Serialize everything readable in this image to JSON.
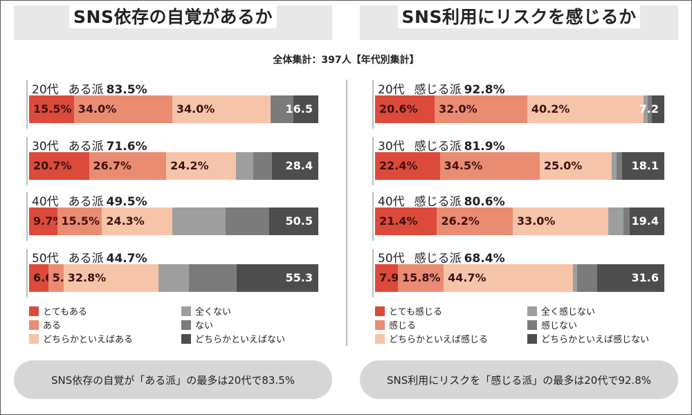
{
  "subtitle": "全体集計：397人【年代別集計】",
  "colors": {
    "very": "#dc4a3c",
    "some": "#ea8c72",
    "rather": "#f6c4a8",
    "not_at_all": "#9e9e9e",
    "not": "#7b7b7b",
    "rather_not": "#4d4d4d"
  },
  "panels": [
    {
      "title": "SNS依存の自覚があるか",
      "legend": [
        "とてもある",
        "全くない",
        "ある",
        "ない",
        "どちらかといえばある",
        "どちらかといえばない"
      ],
      "footer": "SNS依存の自覚が「ある派」の最多は20代で83.5%"
    },
    {
      "title": "SNS利用にリスクを感じるか",
      "legend": [
        "とても感じる",
        "全く感じない",
        "感じる",
        "感じない",
        "どちらかといえば感じる",
        "どちらかといえば感じない"
      ],
      "footer": "SNS利用にリスクを「感じる派」の最多は20代で92.8%"
    }
  ],
  "chart_data": [
    {
      "type": "bar",
      "stacked": true,
      "orientation": "horizontal",
      "title": "SNS依存の自覚があるか",
      "categories": [
        "20代",
        "30代",
        "40代",
        "50代"
      ],
      "group_prefix": "ある派",
      "group_totals": [
        "83.5%",
        "71.6%",
        "49.5%",
        "44.7%"
      ],
      "series": [
        {
          "name": "とてもある",
          "values": [
            15.5,
            20.7,
            9.7,
            6.6
          ],
          "labels": [
            "15.5%",
            "20.7%",
            "9.7%",
            "6.6%"
          ]
        },
        {
          "name": "ある",
          "values": [
            34.0,
            26.7,
            15.5,
            5.3
          ],
          "labels": [
            "34.0%",
            "26.7%",
            "15.5%",
            "5.3%"
          ]
        },
        {
          "name": "どちらかといえばある",
          "values": [
            34.0,
            24.2,
            24.3,
            32.8
          ],
          "labels": [
            "34.0%",
            "24.2%",
            "24.3%",
            "32.8%"
          ]
        },
        {
          "name": "全くない",
          "values": [
            0,
            6.0,
            18.5,
            10.5
          ],
          "labels": [
            "",
            "",
            "",
            ""
          ]
        },
        {
          "name": "ない",
          "values": [
            8.0,
            6.4,
            15.0,
            16.5
          ],
          "labels": [
            "",
            "",
            "",
            ""
          ]
        },
        {
          "name": "どちらかといえばない",
          "values": [
            8.5,
            16.0,
            17.0,
            28.3
          ],
          "labels": [
            "",
            "",
            "",
            ""
          ]
        }
      ],
      "negative_totals": [
        "16.5",
        "28.4",
        "50.5",
        "55.3"
      ]
    },
    {
      "type": "bar",
      "stacked": true,
      "orientation": "horizontal",
      "title": "SNS利用にリスクを感じるか",
      "categories": [
        "20代",
        "30代",
        "40代",
        "50代"
      ],
      "group_prefix": "感じる派",
      "group_totals": [
        "92.8%",
        "81.9%",
        "80.6%",
        "68.4%"
      ],
      "series": [
        {
          "name": "とても感じる",
          "values": [
            20.6,
            22.4,
            21.4,
            7.9
          ],
          "labels": [
            "20.6%",
            "22.4%",
            "21.4%",
            "7.9%"
          ]
        },
        {
          "name": "感じる",
          "values": [
            32.0,
            34.5,
            26.2,
            15.8
          ],
          "labels": [
            "32.0%",
            "34.5%",
            "26.2%",
            "15.8%"
          ]
        },
        {
          "name": "どちらかといえば感じる",
          "values": [
            40.2,
            25.0,
            33.0,
            44.7
          ],
          "labels": [
            "40.2%",
            "25.0%",
            "33.0%",
            "44.7%"
          ]
        },
        {
          "name": "全く感じない",
          "values": [
            1.4,
            1.5,
            5.4,
            1.5
          ],
          "labels": [
            "",
            "",
            "",
            ""
          ]
        },
        {
          "name": "感じない",
          "values": [
            1.5,
            2.0,
            2.0,
            7.0
          ],
          "labels": [
            "",
            "",
            "",
            ""
          ]
        },
        {
          "name": "どちらかといえば感じない",
          "values": [
            4.3,
            14.6,
            12.0,
            23.1
          ],
          "labels": [
            "",
            "",
            "",
            ""
          ]
        }
      ],
      "negative_totals": [
        "7.2",
        "18.1",
        "19.4",
        "31.6"
      ]
    }
  ]
}
